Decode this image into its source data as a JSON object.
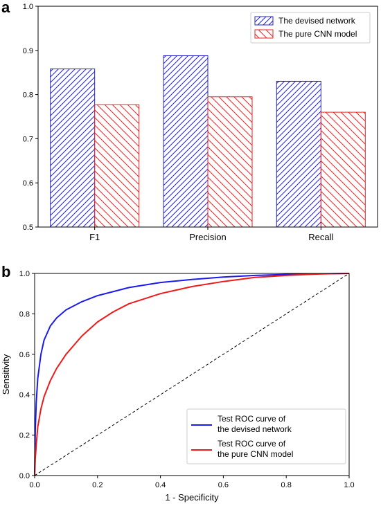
{
  "panel_a_letter": "a",
  "panel_b_letter": "b",
  "chart_data": [
    {
      "type": "bar",
      "categories": [
        "F1",
        "Precision",
        "Recall"
      ],
      "series": [
        {
          "name": "The devised network",
          "values": [
            0.858,
            0.888,
            0.83
          ],
          "color": "#2222cc",
          "hatch": "forward-diagonal"
        },
        {
          "name": "The pure CNN model",
          "values": [
            0.777,
            0.795,
            0.76
          ],
          "color": "#ee2222",
          "hatch": "backward-diagonal"
        }
      ],
      "ylim": [
        0.5,
        1.0
      ],
      "yticks": [
        "0.5",
        "0.6",
        "0.7",
        "0.8",
        "0.9",
        "1.0"
      ],
      "grid": false,
      "legend_position": "top-right"
    },
    {
      "type": "line",
      "xlabel": "1 - Specificity",
      "ylabel": "Sensitivity",
      "xlim": [
        0.0,
        1.0
      ],
      "ylim": [
        0.0,
        1.0
      ],
      "xticks": [
        "0.0",
        "0.2",
        "0.4",
        "0.6",
        "0.8",
        "1.0"
      ],
      "yticks": [
        "0.0",
        "0.2",
        "0.4",
        "0.6",
        "0.8",
        "1.0"
      ],
      "grid": false,
      "legend_position": "bottom-right",
      "series": [
        {
          "name": [
            "Test ROC curve of",
            "the devised network"
          ],
          "color": "#1a1aee",
          "x": [
            0,
            0.002,
            0.005,
            0.01,
            0.02,
            0.03,
            0.05,
            0.07,
            0.1,
            0.15,
            0.2,
            0.3,
            0.4,
            0.5,
            0.6,
            0.7,
            0.8,
            0.9,
            1.0
          ],
          "y": [
            0,
            0.22,
            0.36,
            0.48,
            0.6,
            0.67,
            0.74,
            0.78,
            0.82,
            0.86,
            0.89,
            0.93,
            0.955,
            0.97,
            0.982,
            0.99,
            0.995,
            0.998,
            1.0
          ]
        },
        {
          "name": [
            "Test ROC curve of",
            "the pure CNN model"
          ],
          "color": "#ee1a1a",
          "x": [
            0,
            0.002,
            0.005,
            0.01,
            0.02,
            0.03,
            0.05,
            0.07,
            0.1,
            0.15,
            0.2,
            0.25,
            0.3,
            0.4,
            0.5,
            0.6,
            0.7,
            0.8,
            0.9,
            1.0
          ],
          "y": [
            0,
            0.08,
            0.15,
            0.24,
            0.33,
            0.39,
            0.47,
            0.53,
            0.6,
            0.69,
            0.76,
            0.81,
            0.85,
            0.9,
            0.935,
            0.96,
            0.98,
            0.99,
            0.997,
            1.0
          ]
        },
        {
          "name": "",
          "style": "dashed",
          "color": "#000000",
          "x": [
            0,
            1
          ],
          "y": [
            0,
            1
          ]
        }
      ]
    }
  ]
}
